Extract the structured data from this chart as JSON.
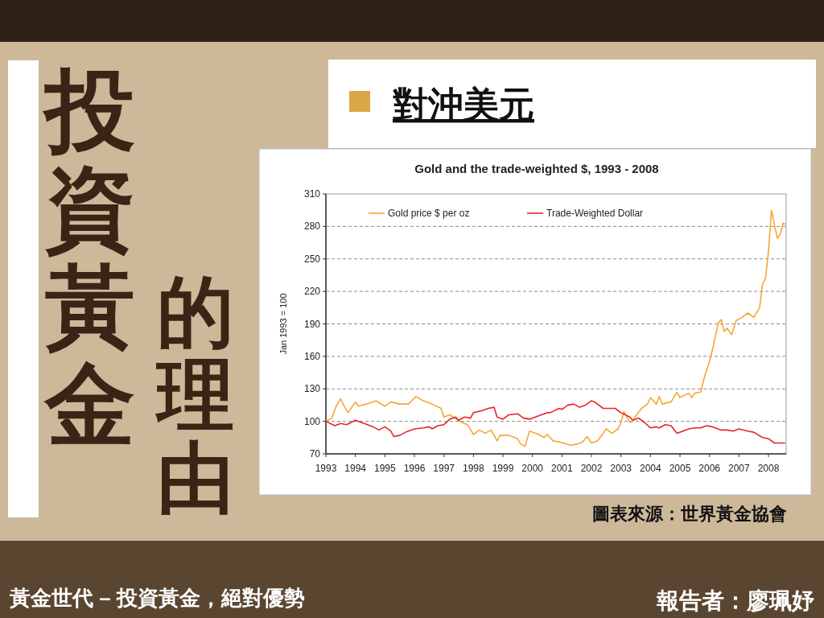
{
  "chart_data": {
    "type": "line",
    "title": "Gold and the trade-weighted $, 1993 - 2008",
    "ylabel": "Jan 1993 = 100",
    "annotations": [
      "投資黃金的理由",
      "對沖美元",
      "圖表來源：世界黃金協會",
      "黃金世代 – 投資黃金，絕對優勢",
      "報告者：廖珮妤"
    ],
    "xlim": [
      1993,
      2008.6
    ],
    "xticks": [
      1993,
      1994,
      1995,
      1996,
      1997,
      1998,
      1999,
      2000,
      2001,
      2002,
      2003,
      2004,
      2005,
      2006,
      2007,
      2008
    ],
    "ylim": [
      70,
      310
    ],
    "yticks": [
      70,
      100,
      130,
      160,
      190,
      220,
      250,
      280,
      310
    ],
    "grid": "y",
    "legend": "top",
    "series": [
      {
        "name": "Gold price $ per oz",
        "color": "#f5a733",
        "x": [
          1993.0,
          1993.2,
          1993.35,
          1993.5,
          1993.6,
          1993.75,
          1994.0,
          1994.1,
          1994.5,
          1994.7,
          1995.0,
          1995.2,
          1995.5,
          1995.8,
          1996.05,
          1996.3,
          1996.6,
          1996.9,
          1997.0,
          1997.2,
          1997.6,
          1997.8,
          1998.0,
          1998.2,
          1998.4,
          1998.6,
          1998.8,
          1998.9,
          1999.2,
          1999.5,
          1999.6,
          1999.75,
          1999.9,
          2000.2,
          2000.4,
          2000.5,
          2000.7,
          2000.9,
          2001.3,
          2001.5,
          2001.7,
          2001.85,
          2002.0,
          2002.2,
          2002.4,
          2002.5,
          2002.7,
          2002.9,
          2003.0,
          2003.1,
          2003.3,
          2003.4,
          2003.5,
          2003.7,
          2003.9,
          2004.0,
          2004.2,
          2004.3,
          2004.4,
          2004.7,
          2004.9,
          2005.0,
          2005.3,
          2005.4,
          2005.5,
          2005.7,
          2005.85,
          2006.0,
          2006.1,
          2006.3,
          2006.4,
          2006.5,
          2006.6,
          2006.75,
          2006.9,
          2007.1,
          2007.3,
          2007.5,
          2007.7,
          2007.8,
          2007.9,
          2008.0,
          2008.1,
          2008.3,
          2008.4,
          2008.5,
          2008.57
        ],
        "values": [
          100,
          103,
          114,
          121,
          115,
          108,
          118,
          114,
          117,
          119,
          114,
          118,
          116,
          116,
          123,
          119,
          116,
          112,
          104,
          106,
          99,
          97,
          88,
          92,
          89,
          92,
          82,
          87,
          87,
          84,
          79,
          77,
          91,
          88,
          85,
          88,
          82,
          81,
          78,
          79,
          81,
          86,
          80,
          82,
          89,
          93,
          89,
          93,
          99,
          109,
          99,
          100,
          105,
          112,
          116,
          122,
          116,
          123,
          116,
          118,
          127,
          122,
          126,
          122,
          126,
          127,
          143,
          155,
          166,
          191,
          194,
          183,
          186,
          180,
          193,
          196,
          200,
          196,
          205,
          227,
          232,
          257,
          295,
          269,
          273,
          283,
          282
        ]
      },
      {
        "name": "Trade-Weighted Dollar",
        "color": "#e8242c",
        "x": [
          1993.0,
          1993.3,
          1993.5,
          1993.7,
          1994.0,
          1994.3,
          1994.6,
          1994.8,
          1995.0,
          1995.2,
          1995.3,
          1995.5,
          1995.7,
          1996.0,
          1996.3,
          1996.5,
          1996.6,
          1996.8,
          1997.0,
          1997.2,
          1997.4,
          1997.5,
          1997.7,
          1997.9,
          1998.0,
          1998.3,
          1998.5,
          1998.7,
          1998.8,
          1999.0,
          1999.2,
          1999.5,
          1999.7,
          1999.9,
          2000.1,
          2000.3,
          2000.5,
          2000.6,
          2000.9,
          2001.0,
          2001.2,
          2001.4,
          2001.6,
          2001.8,
          2002.0,
          2002.1,
          2002.4,
          2002.6,
          2002.8,
          2003.0,
          2003.3,
          2003.4,
          2003.6,
          2003.8,
          2004.0,
          2004.2,
          2004.3,
          2004.5,
          2004.7,
          2004.9,
          2005.1,
          2005.3,
          2005.5,
          2005.7,
          2005.9,
          2006.1,
          2006.4,
          2006.6,
          2006.8,
          2007.0,
          2007.3,
          2007.5,
          2007.8,
          2008.0,
          2008.2,
          2008.4,
          2008.57
        ],
        "values": [
          100,
          96,
          98,
          97,
          101,
          98,
          95,
          92,
          95,
          91,
          86,
          87,
          90,
          93,
          94,
          95,
          93,
          96,
          97,
          102,
          104,
          101,
          104,
          103,
          108,
          110,
          112,
          113,
          104,
          102,
          106,
          107,
          103,
          102,
          104,
          106,
          108,
          108,
          112,
          111,
          115,
          116,
          113,
          115,
          119,
          118,
          112,
          112,
          112,
          108,
          104,
          101,
          103,
          99,
          94,
          95,
          94,
          97,
          96,
          89,
          91,
          93,
          94,
          94,
          96,
          95,
          92,
          92,
          91,
          93,
          91,
          90,
          85,
          84,
          80,
          80,
          80
        ]
      }
    ]
  }
}
